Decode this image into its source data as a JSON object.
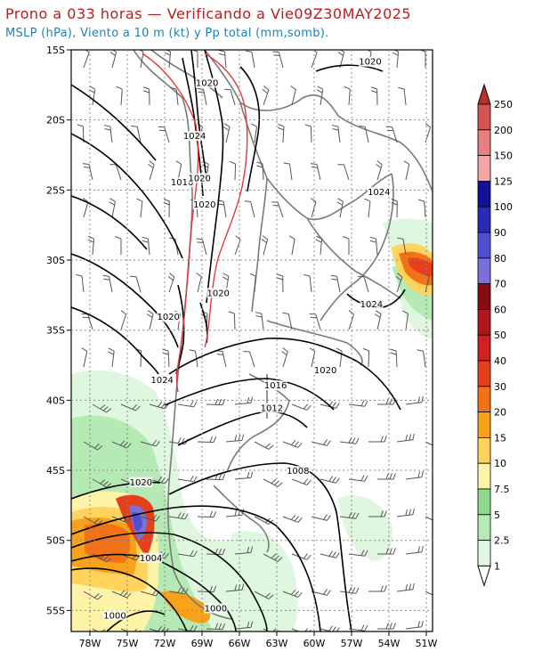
{
  "header": {
    "title": "Prono a 033 horas — Verificando a Vie09Z30MAY2025",
    "subtitle": "MSLP (hPa), Viento a 10 m (kt) y Pp total (mm,somb)."
  },
  "map": {
    "lat_labels": [
      "15S",
      "20S",
      "25S",
      "30S",
      "35S",
      "40S",
      "45S",
      "50S",
      "55S"
    ],
    "lon_labels": [
      "78W",
      "75W",
      "72W",
      "69W",
      "66W",
      "63W",
      "60W",
      "57W",
      "54W",
      "51W"
    ],
    "isobar_labels": [
      {
        "text": "1020",
        "lon": -55.5,
        "lat": -16.0
      },
      {
        "text": "1020",
        "lon": -68.6,
        "lat": -17.5
      },
      {
        "text": "1024",
        "lon": -69.6,
        "lat": -21.3
      },
      {
        "text": "1016",
        "lon": -70.6,
        "lat": -24.6
      },
      {
        "text": "1020",
        "lon": -69.2,
        "lat": -24.3
      },
      {
        "text": "1020",
        "lon": -68.8,
        "lat": -26.2
      },
      {
        "text": "1024",
        "lon": -54.8,
        "lat": -25.3
      },
      {
        "text": "1020",
        "lon": -67.7,
        "lat": -32.5
      },
      {
        "text": "1024",
        "lon": -55.4,
        "lat": -33.3
      },
      {
        "text": "1020",
        "lon": -71.7,
        "lat": -34.2
      },
      {
        "text": "1024",
        "lon": -72.2,
        "lat": -38.7
      },
      {
        "text": "1020",
        "lon": -59.1,
        "lat": -38.0
      },
      {
        "text": "1016",
        "lon": -63.1,
        "lat": -39.1
      },
      {
        "text": "1012",
        "lon": -63.4,
        "lat": -40.7
      },
      {
        "text": "1008",
        "lon": -61.3,
        "lat": -45.2
      },
      {
        "text": "1020",
        "lon": -73.9,
        "lat": -46.0
      },
      {
        "text": "1004",
        "lon": -73.1,
        "lat": -51.4
      },
      {
        "text": "1000",
        "lon": -76.0,
        "lat": -55.5
      },
      {
        "text": "1000",
        "lon": -67.9,
        "lat": -55.0
      }
    ]
  },
  "colorbar": {
    "labels": [
      "1",
      "2.5",
      "5",
      "7.5",
      "10",
      "15",
      "20",
      "30",
      "40",
      "50",
      "60",
      "70",
      "80",
      "90",
      "100",
      "125",
      "150",
      "200",
      "250"
    ],
    "colors": [
      "#ffffff",
      "#dff7df",
      "#b5eab5",
      "#8fd98f",
      "#fff3a8",
      "#ffd35c",
      "#f7a21a",
      "#f27217",
      "#e5401b",
      "#d21f1f",
      "#b0151c",
      "#870c14",
      "#7b6fd9",
      "#4f4fd1",
      "#2a2ab8",
      "#121299",
      "#f4a6a6",
      "#e78080",
      "#d45353",
      "#b82e2e"
    ]
  }
}
